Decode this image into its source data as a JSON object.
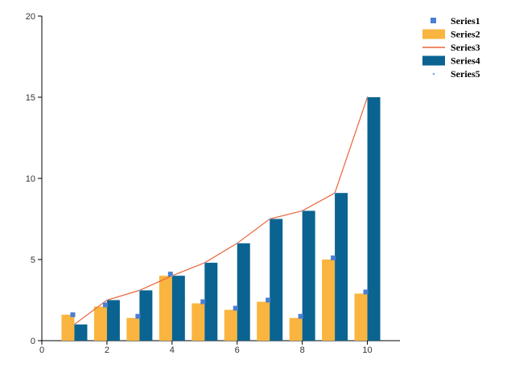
{
  "chart_data": {
    "type": "bar",
    "x": [
      1,
      2,
      3,
      4,
      5,
      6,
      7,
      8,
      9,
      10
    ],
    "xlim": [
      0,
      11
    ],
    "ylim": [
      0,
      20
    ],
    "x_ticks": [
      0,
      2,
      4,
      6,
      8,
      10
    ],
    "y_ticks": [
      0,
      5,
      10,
      15,
      20
    ],
    "grid": false,
    "legend_position": "top-right",
    "series": [
      {
        "name": "Series1",
        "type": "scatter",
        "marker": "square",
        "color": "#4a7fd4",
        "values": [
          1.6,
          2.2,
          1.5,
          4.1,
          2.4,
          2.0,
          2.5,
          1.5,
          5.1,
          3.0
        ]
      },
      {
        "name": "Series2",
        "type": "bar",
        "color": "#f9b53f",
        "values": [
          1.6,
          2.1,
          1.4,
          4.0,
          2.3,
          1.9,
          2.4,
          1.4,
          5.0,
          2.9
        ]
      },
      {
        "name": "Series3",
        "type": "line",
        "color": "#e8643a",
        "values": [
          1.0,
          2.5,
          3.1,
          4.0,
          4.8,
          6.0,
          7.5,
          8.0,
          9.1,
          15.0
        ]
      },
      {
        "name": "Series4",
        "type": "bar",
        "color": "#0a6391",
        "values": [
          1.0,
          2.5,
          3.1,
          4.0,
          4.8,
          6.0,
          7.5,
          8.0,
          9.1,
          15.0
        ]
      },
      {
        "name": "Series5",
        "type": "scatter",
        "marker": "dot",
        "color": "#7fa8d8",
        "values": [
          1.0,
          2.5,
          3.1,
          4.0,
          4.8,
          6.0,
          7.5,
          8.0,
          9.1,
          15.0
        ]
      }
    ]
  }
}
